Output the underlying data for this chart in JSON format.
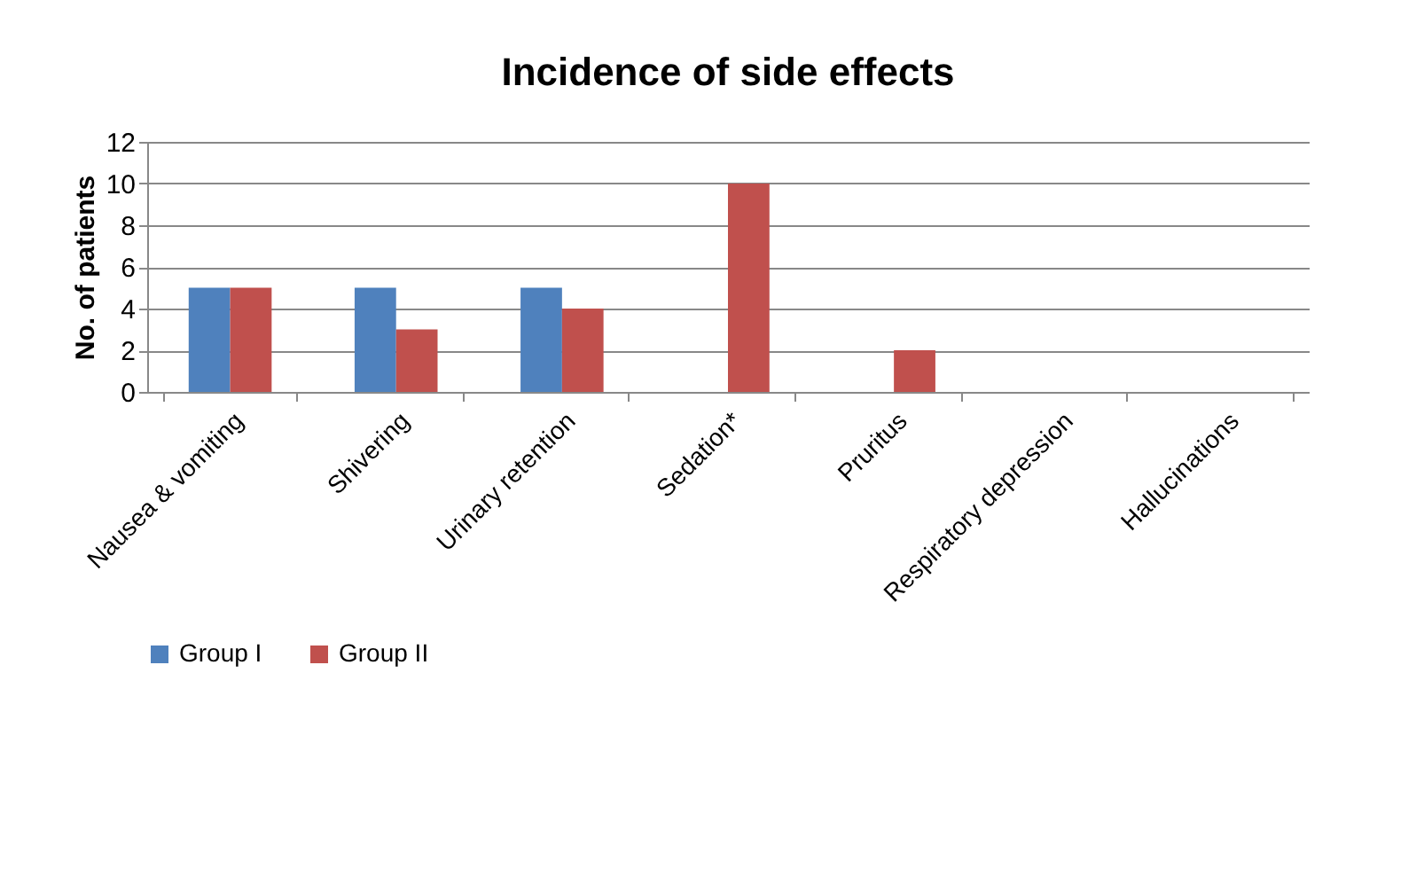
{
  "chart_data": {
    "type": "bar",
    "title": "Incidence of side  effects",
    "ylabel": "No. of patients",
    "categories": [
      "Nausea & vomiting",
      "Shivering",
      "Urinary retention",
      "Sedation*",
      "Pruritus",
      "Respiratory depression",
      "Hallucinations"
    ],
    "series": [
      {
        "name": "Group I",
        "color": "#4f81bd",
        "values": [
          5,
          5,
          5,
          0,
          0,
          0,
          0
        ]
      },
      {
        "name": "Group II",
        "color": "#c0504d",
        "values": [
          5,
          3,
          4,
          10,
          2,
          0,
          0
        ]
      }
    ],
    "ylim": [
      0,
      12
    ],
    "yticks": [
      0,
      2,
      4,
      6,
      8,
      10,
      12
    ],
    "grid": "y",
    "legend": "bottom"
  }
}
